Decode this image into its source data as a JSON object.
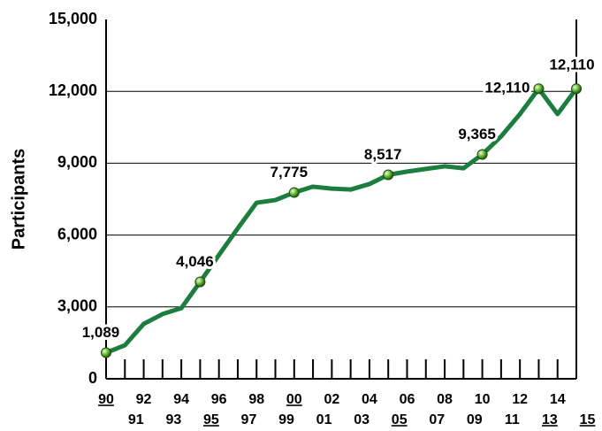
{
  "chart_data": {
    "type": "line",
    "y_label": "Participants",
    "categories": [
      "90",
      "91",
      "92",
      "93",
      "94",
      "95",
      "96",
      "97",
      "98",
      "99",
      "00",
      "01",
      "02",
      "03",
      "04",
      "05",
      "06",
      "07",
      "08",
      "09",
      "10",
      "11",
      "12",
      "13",
      "14",
      "15"
    ],
    "underlined": [
      0,
      5,
      10,
      15,
      23,
      25
    ],
    "series": [
      {
        "name": "Participants",
        "color": "#1b7d3e",
        "values": [
          1089,
          1400,
          2290,
          2700,
          2950,
          4046,
          5170,
          6280,
          7350,
          7460,
          7775,
          8020,
          7940,
          7900,
          8130,
          8517,
          8650,
          8760,
          8870,
          8790,
          9365,
          10120,
          11050,
          12110,
          11050,
          12110
        ],
        "value_labels": [
          "1,089",
          null,
          null,
          null,
          null,
          "4,046",
          null,
          null,
          null,
          null,
          "7,775",
          null,
          null,
          null,
          null,
          "8,517",
          null,
          null,
          null,
          null,
          "9,365",
          null,
          null,
          "12,110",
          null,
          "12,110"
        ]
      }
    ],
    "ylim": [
      0,
      15000
    ],
    "yticks": [
      0,
      {
        "value": 3000,
        "label": "3,000"
      },
      {
        "value": 6000,
        "label": "6,000"
      },
      {
        "value": 9000,
        "label": "9,000"
      },
      {
        "value": 12000,
        "label": "12,000"
      },
      {
        "value": 15000,
        "label": "15,000"
      }
    ],
    "grid": true
  }
}
